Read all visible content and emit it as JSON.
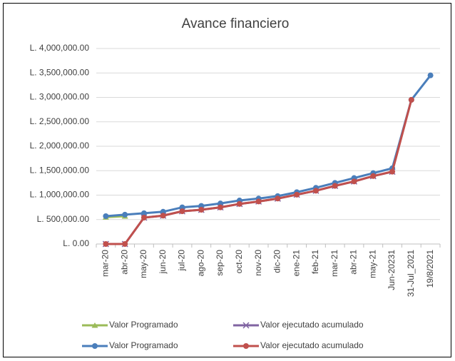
{
  "chart_data": {
    "type": "line",
    "title": "Avance financiero",
    "categories": [
      "mar-20",
      "abr-20",
      "may-20",
      "jun-20",
      "jul-20",
      "ago-20",
      "sep-20",
      "oct-20",
      "nov-20",
      "dic-20",
      "ene-21",
      "feb-21",
      "mar-21",
      "abr-21",
      "may-21",
      "Jun-20231",
      "31-Jul_2021",
      "19/8/2021"
    ],
    "ylim": [
      0,
      4000000
    ],
    "yticks": [
      {
        "value": 0,
        "label": "L. 0.00"
      },
      {
        "value": 500000,
        "label": "L. 500,000.00"
      },
      {
        "value": 1000000,
        "label": "L. 1,000,000.00"
      },
      {
        "value": 1500000,
        "label": "L. 1,500,000.00"
      },
      {
        "value": 2000000,
        "label": "L. 2,000,000.00"
      },
      {
        "value": 2500000,
        "label": "L. 2,500,000.00"
      },
      {
        "value": 3000000,
        "label": "L. 3,000,000.00"
      },
      {
        "value": 3500000,
        "label": "L. 3,500,000.00"
      },
      {
        "value": 4000000,
        "label": "L. 4,000,000.00"
      }
    ],
    "grid": true,
    "series": [
      {
        "name": "Valor Programado",
        "color": "#9bbb59",
        "marker": "triangle",
        "values": [
          550000,
          570000,
          null,
          null,
          null,
          null,
          null,
          null,
          null,
          null,
          null,
          null,
          null,
          null,
          null,
          null,
          null,
          null
        ]
      },
      {
        "name": "Valor ejecutado acumulado",
        "color": "#8064a2",
        "marker": "x",
        "values": [
          0,
          0,
          540000,
          580000,
          670000,
          700000,
          750000,
          820000,
          870000,
          930000,
          1010000,
          1090000,
          1190000,
          1280000,
          1390000,
          1480000,
          null,
          null
        ]
      },
      {
        "name": "Valor Programado",
        "color": "#4a7ebb",
        "marker": "circle",
        "values": [
          570000,
          600000,
          630000,
          660000,
          750000,
          780000,
          830000,
          890000,
          930000,
          980000,
          1060000,
          1150000,
          1250000,
          1350000,
          1450000,
          1550000,
          2950000,
          3450000
        ]
      },
      {
        "name": "Valor ejecutado acumulado",
        "color": "#c0504d",
        "marker": "circle",
        "values": [
          0,
          0,
          540000,
          580000,
          670000,
          700000,
          750000,
          820000,
          870000,
          930000,
          1010000,
          1090000,
          1190000,
          1280000,
          1390000,
          1480000,
          2950000,
          null
        ]
      }
    ],
    "legend": "bottom"
  }
}
